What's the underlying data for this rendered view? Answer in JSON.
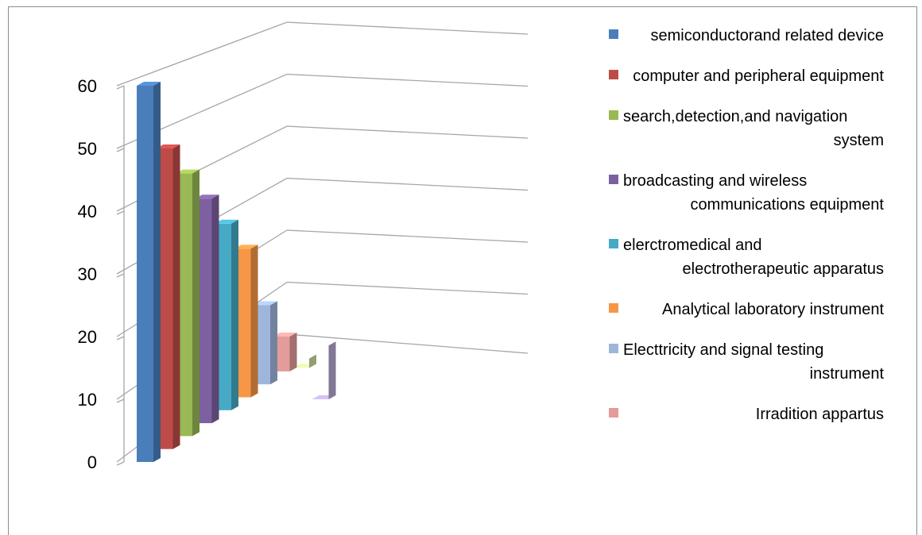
{
  "chart_data": {
    "type": "bar",
    "style": "3d-column",
    "categories": [
      "semiconductorand related device",
      "computer and peripheral equipment",
      "search,detection,and navigation system",
      "broadcasting and wireless communications equipment",
      "elerctromedical and electrotherapeutic apparatus",
      "Analytical laboratory instrument",
      "Electtricity and signal testing instrument",
      "Irradition appartus",
      "",
      ""
    ],
    "values": [
      60,
      50,
      46,
      42,
      38,
      34,
      25,
      20,
      15,
      10
    ],
    "colors": [
      "#4a7ebb",
      "#be4b48",
      "#98b954",
      "#7d60a0",
      "#46aac4",
      "#f79646",
      "#9eb6db",
      "#e39c9a",
      "#c9dc9a",
      "#b5a5cf"
    ],
    "ylim": [
      0,
      60
    ],
    "yticks": [
      0,
      10,
      20,
      30,
      40,
      50,
      60
    ],
    "title": "",
    "xlabel": "",
    "ylabel": "",
    "grid": true,
    "legend_position": "right",
    "legend": [
      {
        "label": "semiconductorand related device",
        "color": "#4a7ebb"
      },
      {
        "label": "computer and peripheral equipment",
        "color": "#be4b48"
      },
      {
        "label": "search,detection,and navigation system",
        "color": "#98b954"
      },
      {
        "label": "broadcasting and wireless communications equipment",
        "color": "#7d60a0"
      },
      {
        "label": "elerctromedical and electrotherapeutic apparatus",
        "color": "#46aac4"
      },
      {
        "label": "Analytical laboratory instrument",
        "color": "#f79646"
      },
      {
        "label": "Electtricity and signal testing instrument",
        "color": "#9eb6db"
      },
      {
        "label": "Irradition appartus",
        "color": "#e39c9a"
      }
    ]
  }
}
